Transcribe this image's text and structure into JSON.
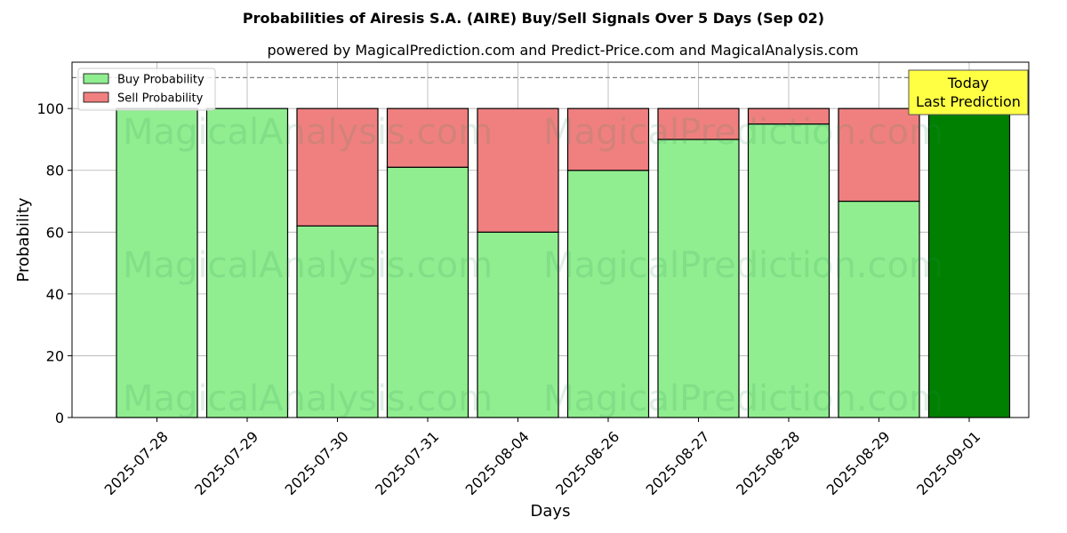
{
  "title": "Probabilities of Airesis S.A. (AIRE) Buy/Sell Signals Over 5 Days (Sep 02)",
  "subtitle": "powered by MagicalPrediction.com and Predict-Price.com and MagicalAnalysis.com",
  "watermarks": [
    "MagicalAnalysis.com",
    "MagicalPrediction.com"
  ],
  "annotation": {
    "line1": "Today",
    "line2": "Last Prediction"
  },
  "colors": {
    "buy": "#90ee90",
    "sell": "#f08080",
    "today_buy": "#008000",
    "annotation_bg": "#ffff44",
    "reference_line": "#808080"
  },
  "chart_data": {
    "type": "bar",
    "stacked": true,
    "xlabel": "Days",
    "ylabel": "Probability",
    "ylim": [
      0,
      115
    ],
    "yticks": [
      0,
      20,
      40,
      60,
      80,
      100
    ],
    "reference_line": 110,
    "grid": true,
    "legend_position": "top-left",
    "categories": [
      "2025-07-28",
      "2025-07-29",
      "2025-07-30",
      "2025-07-31",
      "2025-08-04",
      "2025-08-26",
      "2025-08-27",
      "2025-08-28",
      "2025-08-29",
      "2025-09-01"
    ],
    "series": [
      {
        "name": "Buy Probability",
        "values": [
          100,
          100,
          62,
          81,
          60,
          80,
          90,
          95,
          70,
          100
        ]
      },
      {
        "name": "Sell Probability",
        "values": [
          0,
          0,
          38,
          19,
          40,
          20,
          10,
          5,
          30,
          0
        ]
      }
    ]
  }
}
